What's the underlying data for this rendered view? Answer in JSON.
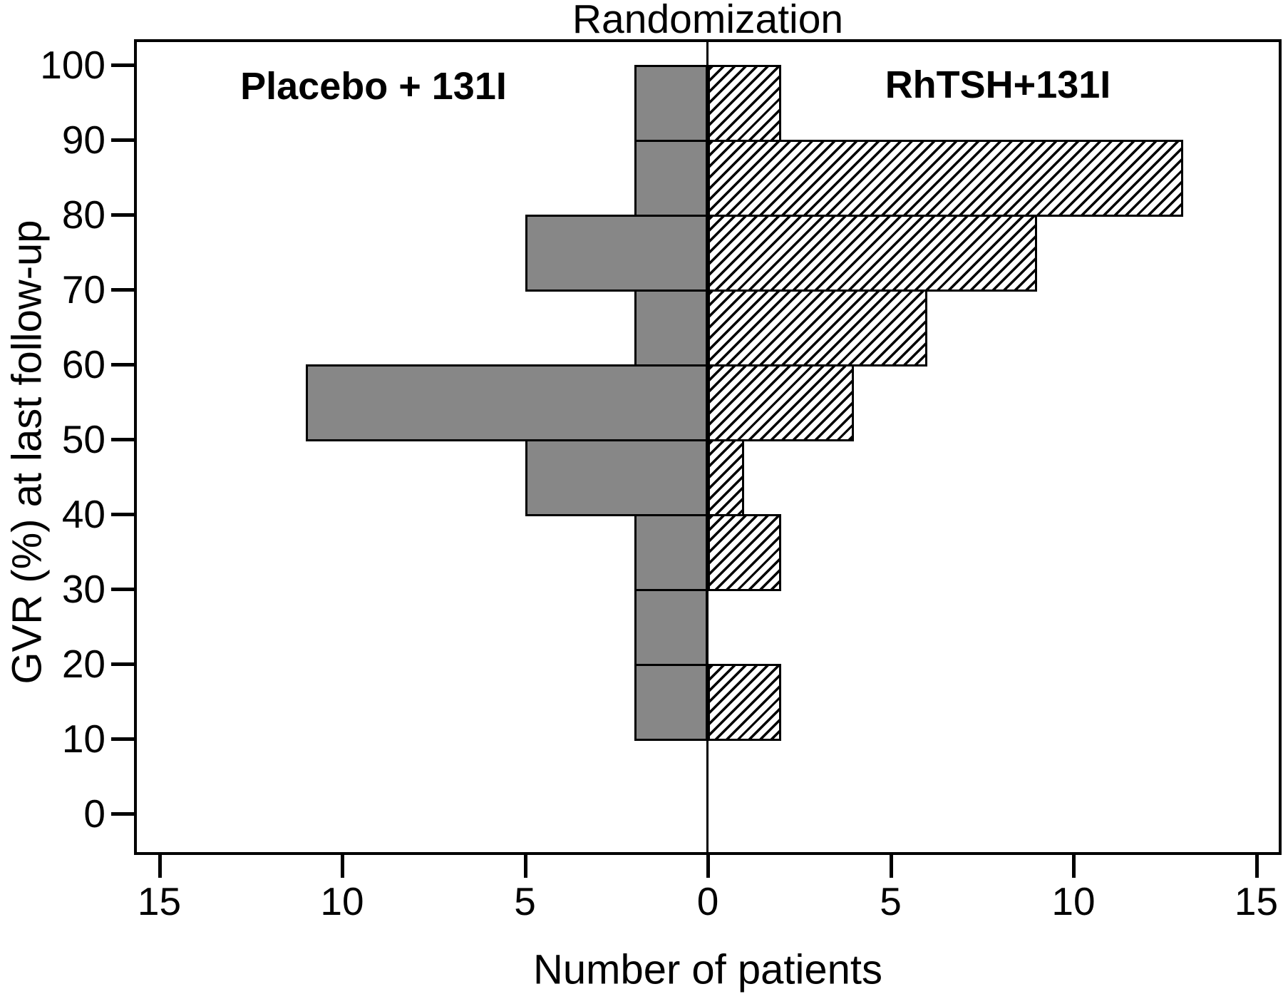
{
  "chart_data": {
    "type": "bar",
    "variant": "diverging-horizontal-histogram",
    "title": "Randomization",
    "xlabel": "Number of patients",
    "ylabel": "GVR (%) at last follow-up",
    "bin_edges": [
      0,
      10,
      20,
      30,
      40,
      50,
      60,
      70,
      80,
      90,
      100
    ],
    "categories": [
      "0-10",
      "10-20",
      "20-30",
      "30-40",
      "40-50",
      "50-60",
      "60-70",
      "70-80",
      "80-90",
      "90-100"
    ],
    "series": [
      {
        "name": "Placebo + 131I",
        "side": "left",
        "fill": "solid",
        "color": "#878787",
        "values": [
          0,
          2,
          2,
          2,
          5,
          11,
          2,
          5,
          2,
          2
        ]
      },
      {
        "name": "RhTSH+131I",
        "side": "right",
        "fill": "diagonal-hatch",
        "color": "#000000",
        "values": [
          0,
          2,
          0,
          2,
          1,
          4,
          6,
          9,
          13,
          2
        ]
      }
    ],
    "x_axis": {
      "tick_labels": [
        "15",
        "10",
        "5",
        "0",
        "5",
        "10",
        "15"
      ],
      "tick_values": [
        -15,
        -10,
        -5,
        0,
        5,
        10,
        15
      ],
      "range": [
        -15.7,
        15.7
      ],
      "grid": false
    },
    "y_axis": {
      "tick_labels": [
        "0",
        "10",
        "20",
        "30",
        "40",
        "50",
        "60",
        "70",
        "80",
        "90",
        "100"
      ],
      "tick_values": [
        0,
        10,
        20,
        30,
        40,
        50,
        60,
        70,
        80,
        90,
        100
      ],
      "range": [
        -5.3,
        103.5
      ],
      "grid": false
    },
    "legend_position": "in-plot-top-corners"
  },
  "colors": {
    "bar_gray": "#878787",
    "outline": "#000000",
    "background": "#ffffff",
    "text": "#000000"
  }
}
